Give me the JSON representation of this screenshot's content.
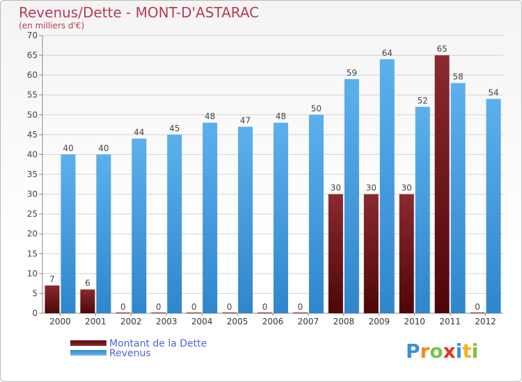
{
  "chart_data": {
    "type": "bar",
    "title": "Revenus/Dette - MONT-D'ASTARAC",
    "subtitle": "(en milliers d'€)",
    "categories": [
      "2000",
      "2001",
      "2002",
      "2003",
      "2004",
      "2005",
      "2006",
      "2007",
      "2008",
      "2009",
      "2010",
      "2011",
      "2012"
    ],
    "series": [
      {
        "name": "Montant de la Dette",
        "values": [
          7,
          6,
          0,
          0,
          0,
          0,
          0,
          0,
          30,
          30,
          30,
          65,
          0
        ],
        "color": "#7a1b1f"
      },
      {
        "name": "Revenus",
        "values": [
          40,
          40,
          44,
          45,
          48,
          47,
          48,
          50,
          59,
          64,
          52,
          58,
          54
        ],
        "color": "#4ea6e6"
      }
    ],
    "ylim": [
      0,
      70
    ],
    "yticks": [
      0,
      5,
      10,
      15,
      20,
      25,
      30,
      35,
      40,
      45,
      50,
      55,
      60,
      65,
      70
    ],
    "grid": true,
    "legend_position": "bottom-left"
  },
  "legend": {
    "debt_label": "Montant de la Dette",
    "revenue_label": "Revenus"
  },
  "logo": {
    "letters": [
      "P",
      "r",
      "o",
      "x",
      "i",
      "t",
      "i"
    ],
    "colors": [
      "#3a8fd8",
      "#f08a1c",
      "#7cc242",
      "#e8312c",
      "#3a8fd8",
      "#f0b41c",
      "#7cc242"
    ]
  }
}
